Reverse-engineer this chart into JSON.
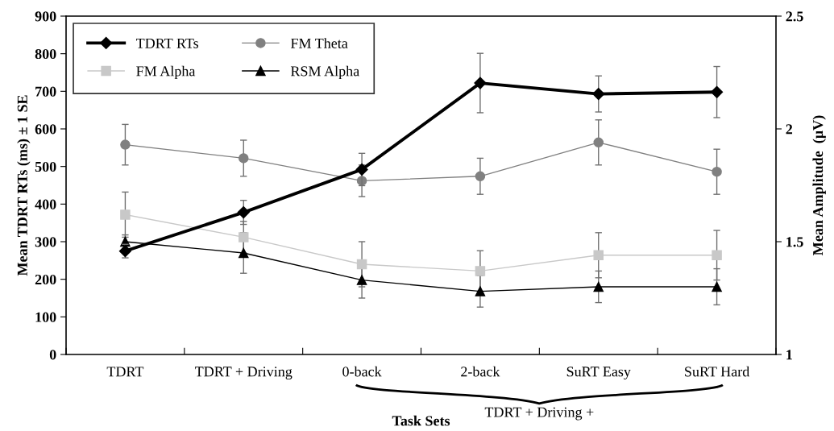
{
  "chart_data": {
    "type": "line",
    "xlabel": "Task Sets",
    "ylabel": "Mean TDRT RTs (ms) ± 1 SE",
    "y2label": "Mean Amplitude  (µV)",
    "categories": [
      "TDRT",
      "TDRT + Driving",
      "0-back",
      "2-back",
      "SuRT Easy",
      "SuRT Hard"
    ],
    "series": [
      {
        "name": "TDRT RTs",
        "color": "#000000",
        "marker": "diamond",
        "values": [
          275,
          378,
          492,
          722,
          693,
          698
        ],
        "errors": [
          18,
          32,
          43,
          79,
          48,
          68
        ]
      },
      {
        "name": "FM Theta",
        "color": "#808080",
        "marker": "circle",
        "axis": "y2",
        "values": [
          1.93,
          1.87,
          1.77,
          1.79,
          1.94,
          1.81
        ],
        "errors": [
          0.09,
          0.08,
          0.07,
          0.08,
          0.1,
          0.1
        ]
      },
      {
        "name": "FM Alpha",
        "color": "#c8c8c8",
        "marker": "square",
        "axis": "y2",
        "values": [
          1.62,
          1.52,
          1.4,
          1.37,
          1.44,
          1.44
        ],
        "errors": [
          0.1,
          0.07,
          0.1,
          0.09,
          0.1,
          0.11
        ]
      },
      {
        "name": "RSM Alpha",
        "color": "#000000",
        "marker": "triangle",
        "axis": "y2",
        "values": [
          1.5,
          1.45,
          1.33,
          1.28,
          1.3,
          1.3
        ],
        "errors": [
          0.03,
          0.09,
          0.08,
          0.07,
          0.07,
          0.08
        ]
      }
    ],
    "ylim": [
      0,
      900
    ],
    "yticks": [
      0,
      100,
      200,
      300,
      400,
      500,
      600,
      700,
      800,
      900
    ],
    "y2lim": [
      1,
      2.5
    ],
    "y2ticks": [
      1,
      1.5,
      2,
      2.5
    ],
    "annotations": [
      "TDRT + Driving +"
    ],
    "legend": "top left",
    "grid": false
  }
}
